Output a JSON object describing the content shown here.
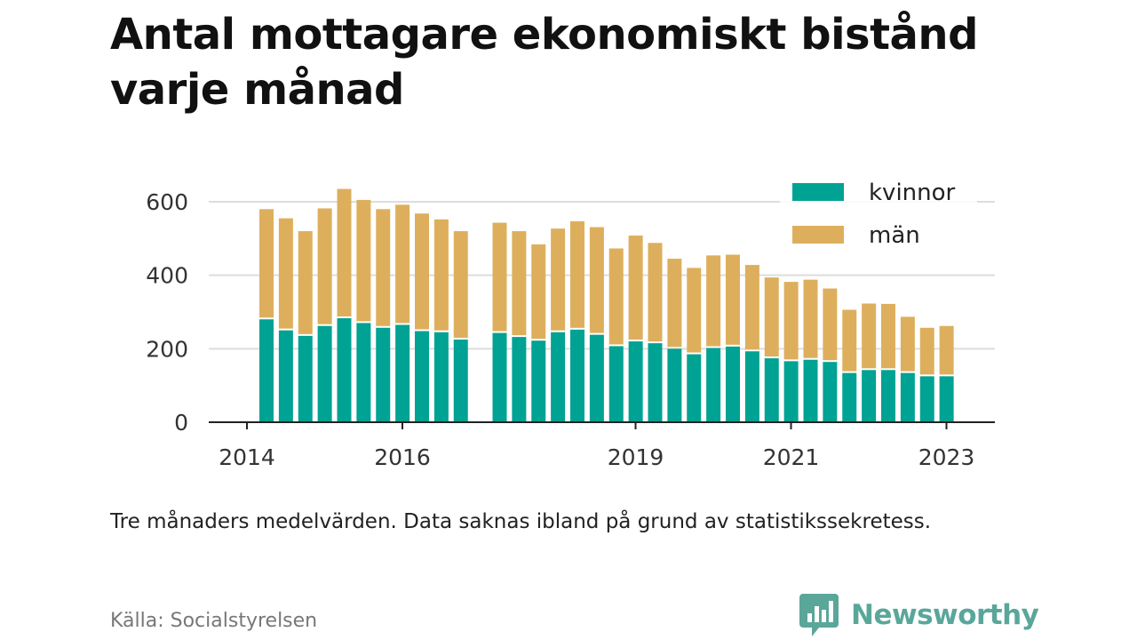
{
  "title": "Antal mottagare ekonomiskt bistånd varje månad",
  "note": "Tre månaders medelvärden. Data saknas ibland på grund av statistikssekretess.",
  "source": "Källa: Socialstyrelsen",
  "brand": "Newsworthy",
  "colors": {
    "kvinnor": "#00a293",
    "man": "#ddaf5d",
    "grid": "#dddddd",
    "axis": "#222222",
    "brand": "#5aa79a"
  },
  "chart_data": {
    "type": "bar",
    "stacked": true,
    "ylim": [
      0,
      650
    ],
    "yticks": [
      0,
      200,
      400,
      600
    ],
    "xlim": [
      2014.0,
      2024.0
    ],
    "xticks": [
      {
        "value": 2014,
        "label": "2014"
      },
      {
        "value": 2016,
        "label": "2016"
      },
      {
        "value": 2019,
        "label": "2019"
      },
      {
        "value": 2021,
        "label": "2021"
      },
      {
        "value": 2023,
        "label": "2023"
      }
    ],
    "grid": true,
    "legend_position": "top-right",
    "x": [
      2014.5,
      2014.75,
      2015.0,
      2015.25,
      2015.5,
      2015.75,
      2016.0,
      2016.25,
      2016.5,
      2016.75,
      2017.0,
      2017.5,
      2017.75,
      2018.0,
      2018.25,
      2018.5,
      2018.75,
      2019.0,
      2019.25,
      2019.5,
      2019.75,
      2020.0,
      2020.25,
      2020.5,
      2020.75,
      2021.0,
      2021.25,
      2021.5,
      2021.75,
      2022.0,
      2022.25,
      2022.5,
      2022.75,
      2023.0,
      2023.25
    ],
    "series": [
      {
        "name": "kvinnor",
        "values": [
          280,
          250,
          235,
          262,
          283,
          270,
          257,
          265,
          248,
          245,
          225,
          243,
          232,
          222,
          245,
          252,
          238,
          207,
          220,
          215,
          200,
          185,
          202,
          206,
          193,
          174,
          166,
          170,
          164,
          134,
          142,
          142,
          134,
          125,
          125
        ]
      },
      {
        "name": "män",
        "values": [
          300,
          305,
          285,
          320,
          352,
          335,
          323,
          327,
          320,
          307,
          295,
          300,
          288,
          262,
          282,
          295,
          293,
          266,
          288,
          273,
          245,
          235,
          252,
          250,
          235,
          220,
          216,
          218,
          200,
          172,
          181,
          180,
          153,
          132,
          137
        ]
      }
    ]
  }
}
